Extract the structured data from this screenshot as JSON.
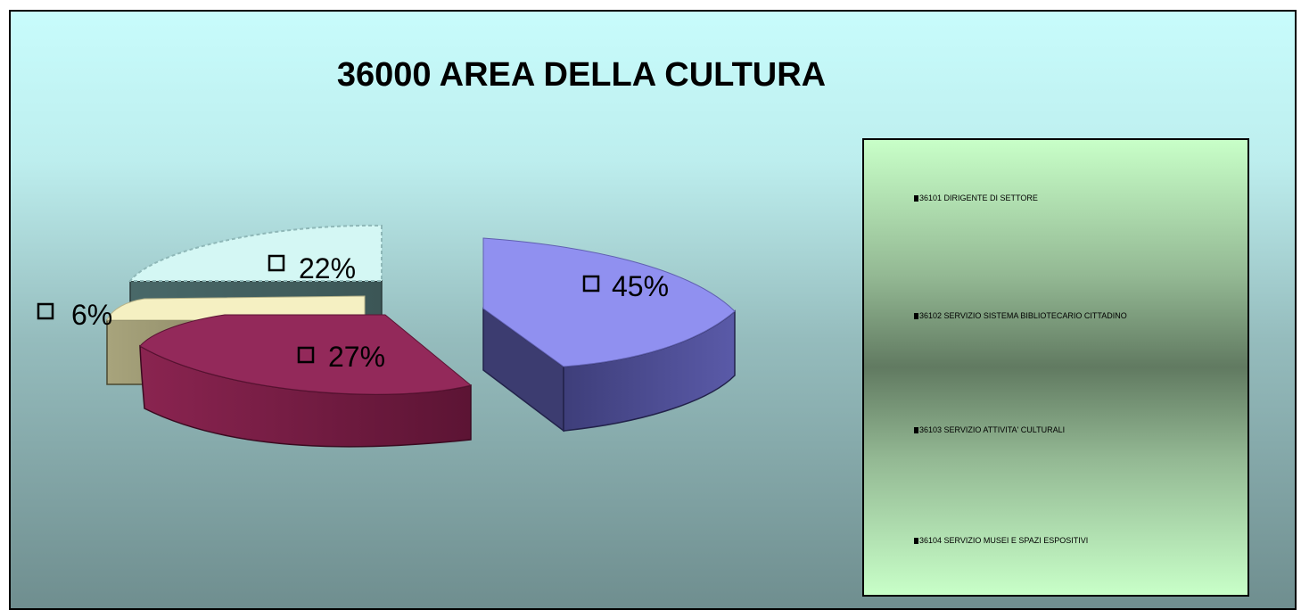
{
  "chart_data": {
    "type": "pie",
    "title": "36000 AREA DELLA CULTURA",
    "labels": [
      "36101 DIRIGENTE  DI  SETTORE",
      "36102 SERVIZIO  SISTEMA  BIBLIOTECARIO   CITTADINO",
      "36103 SERVIZIO  ATTIVITA'  CULTURALI",
      "36104 SERVIZIO  MUSEI  E SPAZI  ESPOSITIVI"
    ],
    "values": [
      45,
      27,
      6,
      22
    ],
    "value_labels": [
      "45%",
      "27%",
      "6%",
      "22%"
    ],
    "colors": [
      "#9090f0",
      "#93295a",
      "#f5f0c2",
      "#d4f7f4"
    ],
    "legend_position": "right",
    "style": "3d-exploded"
  }
}
